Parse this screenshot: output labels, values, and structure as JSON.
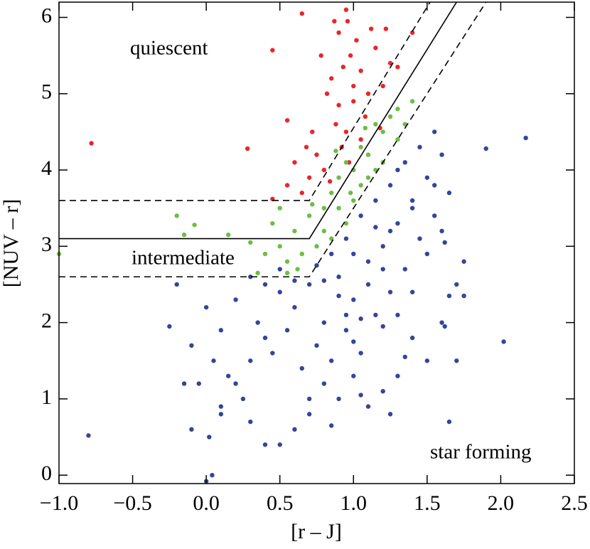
{
  "chart_data": {
    "type": "scatter",
    "xlabel": "[r – J]",
    "ylabel": "[NUV – r]",
    "annotations": [
      "quiescent",
      "intermediate",
      "star forming"
    ],
    "xlim": [
      -1.0,
      2.5
    ],
    "ylim": [
      -0.11,
      6.2
    ],
    "xticks": [
      {
        "value": -1.0,
        "label": "−1.0"
      },
      {
        "value": -0.5,
        "label": "−0.5"
      },
      {
        "value": 0.0,
        "label": "0.0"
      },
      {
        "value": 0.5,
        "label": "0.5"
      },
      {
        "value": 1.0,
        "label": "1.0"
      },
      {
        "value": 1.5,
        "label": "1.5"
      },
      {
        "value": 2.0,
        "label": "2.0"
      },
      {
        "value": 2.5,
        "label": "2.5"
      }
    ],
    "yticks": [
      0,
      1,
      2,
      3,
      4,
      5,
      6
    ],
    "boundaries": [
      {
        "x": [
          -1.0,
          0.7,
          1.7
        ],
        "y": [
          3.1,
          3.1,
          6.2
        ],
        "dash": false
      },
      {
        "x": [
          -1.0,
          0.7,
          1.52
        ],
        "y": [
          3.6,
          3.6,
          6.2
        ],
        "dash": true
      },
      {
        "x": [
          -1.0,
          0.7,
          1.9
        ],
        "y": [
          2.6,
          2.6,
          6.2
        ],
        "dash": true
      }
    ],
    "series": [
      {
        "color": "#e8262b",
        "x": [
          0.85,
          0.9,
          0.95,
          0.98,
          1.0,
          1.05,
          0.88,
          0.92,
          1.1,
          1.15,
          1.2,
          1.25,
          0.8,
          0.75,
          0.7,
          0.65,
          0.6,
          0.55,
          0.95,
          1.02,
          1.08,
          0.82,
          0.78,
          0.87,
          0.93,
          1.12,
          1.3,
          1.18,
          0.97,
          0.72,
          0.84,
          0.68,
          1.22,
          0.9,
          1.05,
          1.0,
          0.96,
          1.4,
          -0.78,
          0.28,
          0.45,
          0.55,
          0.45,
          0.65
        ],
        "values": [
          5.2,
          5.8,
          6.1,
          5.5,
          4.9,
          5.3,
          4.6,
          4.3,
          5.0,
          5.6,
          5.1,
          5.4,
          4.0,
          4.2,
          3.9,
          3.7,
          4.1,
          3.8,
          4.5,
          5.7,
          4.7,
          5.0,
          5.5,
          5.95,
          5.35,
          5.85,
          5.35,
          4.55,
          4.1,
          4.5,
          3.85,
          4.3,
          5.85,
          4.85,
          4.4,
          5.1,
          5.95,
          5.8,
          4.35,
          4.28,
          5.57,
          4.65,
          3.62,
          6.05
        ]
      },
      {
        "color": "#6dbd45",
        "x": [
          0.5,
          0.55,
          0.6,
          0.65,
          0.7,
          0.75,
          0.8,
          0.45,
          0.4,
          0.5,
          0.55,
          0.85,
          0.9,
          0.95,
          1.0,
          1.05,
          1.1,
          1.15,
          1.2,
          1.25,
          1.3,
          1.0,
          1.05,
          0.95,
          0.9,
          0.85,
          1.1,
          1.2,
          1.3,
          1.35,
          1.15,
          0.8,
          0.62,
          0.72,
          0.98,
          1.08,
          1.4,
          0.35,
          0.88,
          -1.0,
          -0.2,
          -0.15,
          -0.08,
          0.15,
          0.1,
          0.3,
          -0.18
        ],
        "values": [
          3.0,
          2.8,
          3.2,
          2.9,
          3.4,
          3.0,
          3.5,
          3.3,
          2.9,
          3.5,
          2.65,
          3.7,
          3.9,
          4.1,
          4.0,
          4.3,
          4.2,
          4.6,
          4.5,
          4.7,
          4.8,
          3.6,
          3.8,
          3.3,
          3.5,
          3.1,
          3.9,
          4.1,
          4.4,
          4.6,
          4.0,
          3.2,
          2.7,
          3.55,
          3.7,
          4.55,
          4.9,
          2.65,
          4.25,
          2.9,
          3.4,
          3.15,
          3.28,
          3.15,
          2.78,
          3.05,
          2.8
        ]
      },
      {
        "color": "#33469a",
        "x": [
          0.5,
          0.6,
          0.7,
          0.8,
          0.9,
          1.0,
          1.1,
          1.2,
          1.3,
          1.4,
          1.5,
          1.6,
          0.4,
          0.3,
          0.2,
          0.1,
          0.35,
          0.45,
          0.55,
          0.65,
          0.75,
          0.85,
          0.95,
          1.05,
          1.15,
          1.25,
          1.35,
          1.45,
          1.55,
          1.65,
          1.7,
          1.75,
          1.6,
          1.5,
          1.4,
          1.3,
          1.2,
          1.1,
          1.0,
          0.9,
          0.8,
          0.7,
          0.6,
          0.5,
          0.4,
          0.3,
          0.25,
          0.15,
          0.05,
          -0.05,
          -0.15,
          -0.1,
          0.0,
          -0.2,
          -0.25,
          0.1,
          0.2,
          0.3,
          0.4,
          0.5,
          0.6,
          0.75,
          0.85,
          0.95,
          1.05,
          1.15,
          1.25,
          1.35,
          1.45,
          1.55,
          1.25,
          1.3,
          1.0,
          0.95,
          1.1,
          1.2,
          1.4,
          1.5,
          1.6,
          1.65,
          1.75,
          1.7,
          1.62,
          1.35,
          1.25,
          1.05,
          0.85,
          0.7,
          1.3,
          1.4,
          1.55,
          1.62,
          0.9,
          0.8,
          1.15,
          1.05,
          1.2,
          1.0,
          2.17,
          1.9,
          2.02,
          -0.8,
          1.65,
          0.02,
          0.04,
          0.0,
          0.1,
          -0.1
        ],
        "values": [
          2.4,
          2.2,
          2.5,
          2.0,
          2.6,
          2.3,
          2.8,
          3.0,
          3.3,
          3.6,
          3.9,
          4.2,
          1.8,
          1.5,
          1.2,
          0.9,
          2.0,
          1.6,
          1.9,
          1.4,
          1.7,
          1.5,
          1.9,
          1.6,
          2.1,
          2.4,
          2.7,
          3.1,
          3.4,
          3.7,
          2.5,
          2.8,
          2.0,
          1.5,
          1.8,
          1.3,
          1.1,
          0.9,
          1.3,
          1.0,
          1.2,
          0.8,
          0.6,
          0.4,
          0.4,
          0.7,
          1.0,
          1.3,
          1.5,
          1.2,
          1.2,
          1.7,
          2.2,
          2.5,
          1.95,
          1.9,
          2.3,
          2.6,
          2.5,
          2.7,
          2.55,
          2.75,
          2.9,
          3.1,
          3.4,
          3.6,
          3.8,
          4.1,
          4.3,
          4.5,
          3.2,
          2.1,
          2.9,
          2.1,
          2.5,
          2.7,
          2.4,
          2.9,
          3.2,
          2.35,
          2.35,
          1.5,
          1.95,
          1.55,
          0.8,
          1.05,
          0.65,
          1.0,
          4.0,
          3.5,
          3.8,
          3.05,
          2.35,
          2.55,
          3.25,
          2.05,
          1.95,
          1.75,
          4.42,
          4.28,
          1.75,
          0.52,
          0.7,
          0.5,
          0.0,
          -0.08,
          0.8,
          0.6
        ]
      }
    ]
  }
}
